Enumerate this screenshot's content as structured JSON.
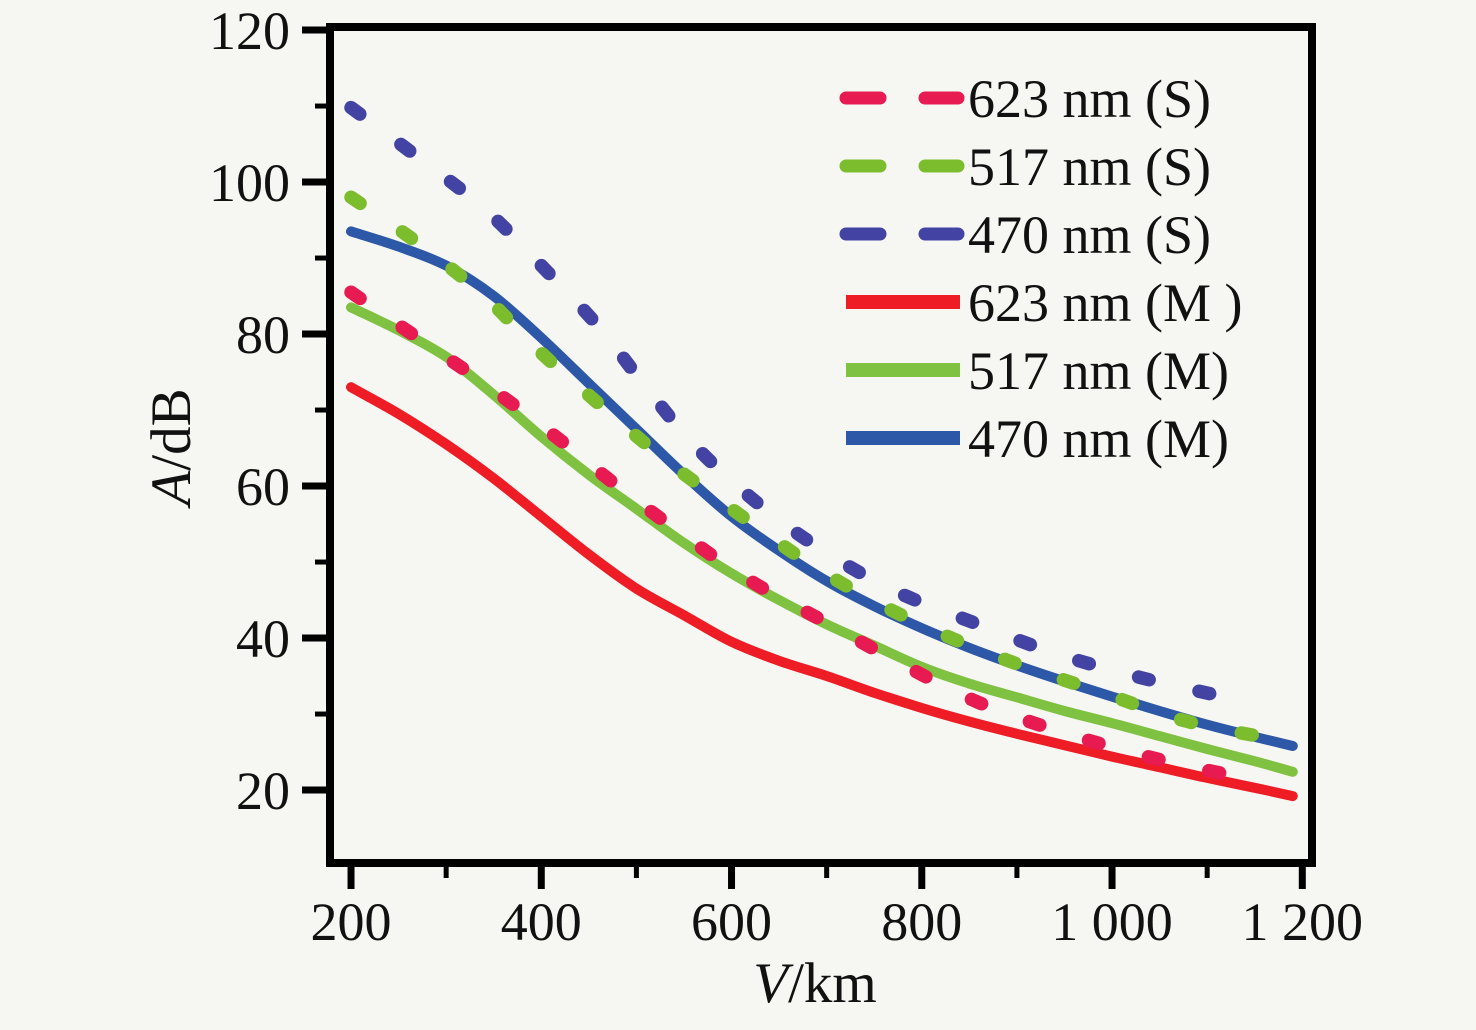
{
  "figure": {
    "background": "#f6f6f3",
    "frame_color": "#000000",
    "text_color": "#111111"
  },
  "chart_data": {
    "type": "line",
    "title": "",
    "xlabel": "V/km",
    "ylabel": "A/dB",
    "xlabel_variable": "V",
    "xlabel_unit": "/km",
    "ylabel_variable": "A",
    "ylabel_unit": "/dB",
    "xlim": [
      177.9,
      1210.2
    ],
    "ylim": [
      10.4,
      120.4
    ],
    "grid": false,
    "legend_position": "top-right-inside",
    "x_major_ticks": [
      200,
      400,
      600,
      800,
      1000,
      1200
    ],
    "x_tick_labels": [
      "200",
      "400",
      "600",
      "800",
      "1 000",
      "1 200"
    ],
    "x_minor_ticks": [
      300,
      500,
      700,
      900,
      1100
    ],
    "y_major_ticks": [
      20,
      40,
      60,
      80,
      100,
      120
    ],
    "y_tick_labels": [
      "20",
      "40",
      "60",
      "80",
      "100",
      "120"
    ],
    "y_minor_ticks": [
      30,
      50,
      70,
      90,
      110
    ],
    "series": [
      {
        "name": "623 nm (S)",
        "style": "dotted",
        "color": "#e81a52",
        "points": [
          [
            200,
            85.5
          ],
          [
            270,
            79.5
          ],
          [
            340,
            73.5
          ],
          [
            410,
            67
          ],
          [
            480,
            60
          ],
          [
            550,
            53.5
          ],
          [
            620,
            47.5
          ],
          [
            700,
            42
          ],
          [
            780,
            36.5
          ],
          [
            860,
            31.5
          ],
          [
            950,
            27.5
          ],
          [
            1050,
            24
          ],
          [
            1150,
            21.3
          ]
        ]
      },
      {
        "name": "517 nm (S)",
        "style": "dotted",
        "color": "#7cbd2d",
        "points": [
          [
            200,
            98
          ],
          [
            270,
            92
          ],
          [
            340,
            85
          ],
          [
            400,
            77.5
          ],
          [
            470,
            69.8
          ],
          [
            530,
            63.5
          ],
          [
            600,
            57
          ],
          [
            670,
            50.8
          ],
          [
            740,
            45.5
          ],
          [
            820,
            40.6
          ],
          [
            900,
            36.6
          ],
          [
            990,
            32.8
          ],
          [
            1080,
            29
          ],
          [
            1180,
            26.5
          ]
        ]
      },
      {
        "name": "470 nm (S)",
        "style": "dotted",
        "color": "#4343a4",
        "points": [
          [
            200,
            109.8
          ],
          [
            270,
            103.3
          ],
          [
            340,
            96.5
          ],
          [
            400,
            89
          ],
          [
            460,
            81
          ],
          [
            510,
            73
          ],
          [
            560,
            65.5
          ],
          [
            620,
            58.5
          ],
          [
            690,
            52
          ],
          [
            770,
            46.3
          ],
          [
            855,
            42
          ],
          [
            940,
            38
          ],
          [
            1030,
            34.8
          ],
          [
            1120,
            32.2
          ]
        ]
      },
      {
        "name": "623 nm (M )",
        "style": "solid",
        "color": "#ee1c25",
        "points": [
          [
            200,
            73
          ],
          [
            250,
            69.5
          ],
          [
            300,
            65.5
          ],
          [
            350,
            61
          ],
          [
            400,
            56
          ],
          [
            450,
            51
          ],
          [
            500,
            46.5
          ],
          [
            550,
            43
          ],
          [
            600,
            39.5
          ],
          [
            650,
            37
          ],
          [
            700,
            35
          ],
          [
            750,
            32.8
          ],
          [
            800,
            30.8
          ],
          [
            850,
            29
          ],
          [
            900,
            27.4
          ],
          [
            950,
            25.9
          ],
          [
            1000,
            24.4
          ],
          [
            1050,
            23
          ],
          [
            1100,
            21.6
          ],
          [
            1150,
            20.3
          ],
          [
            1190,
            19.2
          ]
        ]
      },
      {
        "name": "517 nm (M)",
        "style": "solid",
        "color": "#7fc241",
        "points": [
          [
            200,
            83.5
          ],
          [
            250,
            80.5
          ],
          [
            300,
            77
          ],
          [
            350,
            72
          ],
          [
            400,
            66.5
          ],
          [
            450,
            61.5
          ],
          [
            500,
            57
          ],
          [
            550,
            52.5
          ],
          [
            600,
            48.5
          ],
          [
            650,
            45
          ],
          [
            700,
            41.8
          ],
          [
            750,
            39
          ],
          [
            800,
            36.2
          ],
          [
            850,
            34
          ],
          [
            900,
            32.2
          ],
          [
            950,
            30.4
          ],
          [
            1000,
            28.8
          ],
          [
            1050,
            27.1
          ],
          [
            1100,
            25.4
          ],
          [
            1150,
            23.8
          ],
          [
            1190,
            22.4
          ]
        ]
      },
      {
        "name": "470 nm (M)",
        "style": "solid",
        "color": "#2d57a7",
        "points": [
          [
            200,
            93.5
          ],
          [
            250,
            91.5
          ],
          [
            300,
            89
          ],
          [
            350,
            85
          ],
          [
            400,
            79.5
          ],
          [
            450,
            73.5
          ],
          [
            500,
            67.5
          ],
          [
            550,
            61.5
          ],
          [
            600,
            56
          ],
          [
            650,
            51.5
          ],
          [
            700,
            47.5
          ],
          [
            750,
            44.2
          ],
          [
            800,
            41.3
          ],
          [
            850,
            38.7
          ],
          [
            900,
            36.4
          ],
          [
            950,
            34.3
          ],
          [
            1000,
            32.3
          ],
          [
            1050,
            30.4
          ],
          [
            1100,
            28.6
          ],
          [
            1150,
            27
          ],
          [
            1190,
            25.8
          ]
        ]
      }
    ]
  }
}
